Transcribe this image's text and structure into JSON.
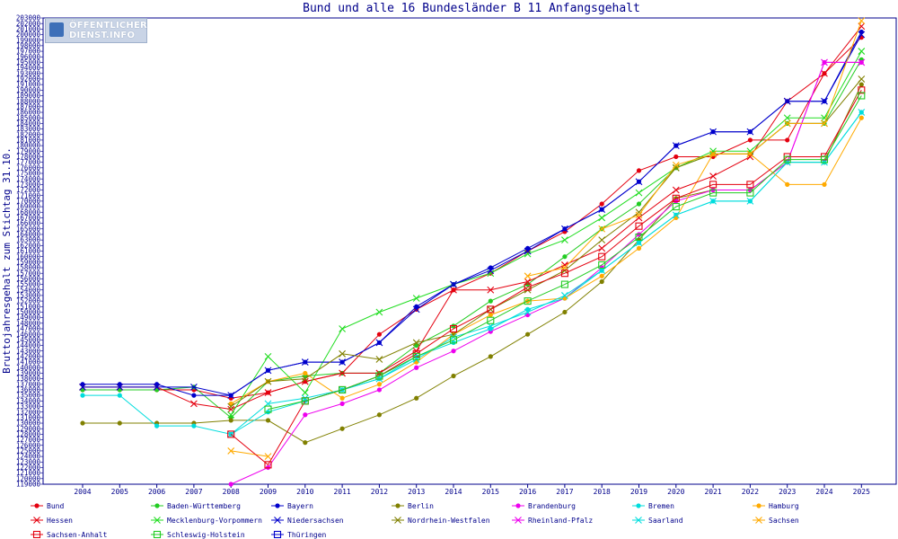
{
  "chart_data": {
    "type": "line",
    "title": "Bund und alle 16 Bundesländer B 11 Anfangsgehalt",
    "xlabel": "",
    "ylabel": "Bruttojahresgehalt zum Stichtag 31.10.",
    "categories": [
      "2004",
      "2005",
      "2006",
      "2007",
      "2008",
      "2009",
      "2010",
      "2011",
      "2012",
      "2013",
      "2014",
      "2015",
      "2016",
      "2017",
      "2018",
      "2019",
      "2020",
      "2021",
      "2022",
      "2023",
      "2024",
      "2025"
    ],
    "ylim": [
      119000,
      203000
    ],
    "ytick_step": 1000,
    "series": [
      {
        "name": "Bund",
        "color": "#e4000f",
        "marker": "dot",
        "values": [
          136000,
          136000,
          136000,
          136000,
          134500,
          135500,
          137500,
          139000,
          146000,
          150500,
          154000,
          157000,
          161000,
          164500,
          169500,
          175500,
          178000,
          178000,
          181000,
          181000,
          193000,
          199500
        ]
      },
      {
        "name": "Baden-Württemberg",
        "color": "#22cc22",
        "marker": "dot",
        "values": [
          136000,
          136000,
          136000,
          136500,
          131000,
          137500,
          138500,
          139000,
          139000,
          144000,
          147500,
          152000,
          155000,
          160000,
          165000,
          169500,
          176000,
          178500,
          178500,
          184000,
          184000,
          195500
        ]
      },
      {
        "name": "Bayern",
        "color": "#0000cc",
        "marker": "dot",
        "values": [
          137000,
          137000,
          137000,
          135000,
          135000,
          139500,
          141000,
          141000,
          144500,
          151000,
          155000,
          158000,
          161500,
          165000,
          168500,
          173500,
          180000,
          182500,
          182500,
          188000,
          188000,
          200500
        ]
      },
      {
        "name": "Berlin",
        "color": "#808000",
        "marker": "dot",
        "values": [
          130000,
          130000,
          130000,
          130000,
          130500,
          130500,
          126500,
          129000,
          131500,
          134500,
          138500,
          142000,
          146000,
          150000,
          155500,
          163000,
          170500,
          172000,
          172000,
          177000,
          177000,
          191000
        ]
      },
      {
        "name": "Brandenburg",
        "color": "#ee00ee",
        "marker": "dot",
        "values": [
          null,
          null,
          null,
          null,
          119000,
          122000,
          131500,
          133500,
          136000,
          140000,
          143000,
          146500,
          149500,
          152500,
          158000,
          164000,
          170000,
          172000,
          172000,
          177000,
          195000,
          195000
        ]
      },
      {
        "name": "Bremen",
        "color": "#00dddd",
        "marker": "dot",
        "values": [
          135000,
          135000,
          129500,
          129500,
          128000,
          132000,
          134000,
          136000,
          138000,
          142000,
          144500,
          147000,
          150500,
          152500,
          157500,
          162500,
          167500,
          170000,
          170000,
          177000,
          177000,
          186000
        ]
      },
      {
        "name": "Hamburg",
        "color": "#ffaa00",
        "marker": "dot",
        "values": [
          null,
          null,
          null,
          null,
          133500,
          137500,
          139000,
          134500,
          137000,
          141000,
          146000,
          149500,
          152000,
          152500,
          156500,
          161500,
          167000,
          178500,
          178500,
          173000,
          173000,
          185000
        ]
      },
      {
        "name": "Hessen",
        "color": "#e4000f",
        "marker": "x",
        "values": [
          136500,
          136500,
          136500,
          133500,
          132500,
          135500,
          137500,
          139000,
          139000,
          143000,
          154000,
          154000,
          155500,
          158500,
          161500,
          167000,
          172000,
          174500,
          178000,
          188000,
          193000,
          201500
        ]
      },
      {
        "name": "Mecklenburg-Vorpommern",
        "color": "#22dd22",
        "marker": "x",
        "values": [
          null,
          null,
          null,
          null,
          131500,
          142000,
          135500,
          147000,
          150000,
          152500,
          155000,
          157000,
          160500,
          163000,
          167000,
          171500,
          176000,
          179000,
          179000,
          185000,
          185000,
          197000
        ]
      },
      {
        "name": "Niedersachsen",
        "color": "#0000cc",
        "marker": "x",
        "values": [
          136500,
          136500,
          136500,
          136500,
          135000,
          139500,
          141000,
          141000,
          144500,
          150500,
          155000,
          157500,
          161000,
          165000,
          168500,
          173500,
          180000,
          182500,
          182500,
          188000,
          188000,
          200000
        ]
      },
      {
        "name": "Nordrhein-Westfalen",
        "color": "#808000",
        "marker": "x",
        "values": [
          null,
          null,
          null,
          null,
          133000,
          137500,
          138000,
          142500,
          141500,
          144500,
          146000,
          150500,
          154000,
          157500,
          163000,
          168000,
          176000,
          178500,
          178500,
          184000,
          184000,
          192000
        ]
      },
      {
        "name": "Rheinland-Pfalz",
        "color": "#ee00ee",
        "marker": "x",
        "values": [
          null,
          null,
          null,
          null,
          null,
          null,
          null,
          null,
          null,
          null,
          null,
          null,
          null,
          null,
          null,
          null,
          null,
          null,
          null,
          177000,
          195000,
          195000
        ]
      },
      {
        "name": "Saarland",
        "color": "#00dddd",
        "marker": "x",
        "values": [
          null,
          null,
          null,
          null,
          128000,
          133500,
          134500,
          136000,
          138000,
          141500,
          145500,
          147500,
          150000,
          153000,
          157500,
          162500,
          167500,
          170000,
          170000,
          177000,
          177000,
          186000
        ]
      },
      {
        "name": "Sachsen",
        "color": "#ffaa00",
        "marker": "x",
        "values": [
          null,
          null,
          null,
          null,
          125000,
          124000,
          null,
          null,
          null,
          null,
          null,
          null,
          156500,
          158000,
          165000,
          167500,
          176500,
          178500,
          178500,
          184000,
          184000,
          202500
        ]
      },
      {
        "name": "Sachsen-Anhalt",
        "color": "#e4000f",
        "marker": "square",
        "values": [
          null,
          null,
          null,
          null,
          128000,
          122500,
          134000,
          136000,
          138500,
          142500,
          147000,
          150500,
          154500,
          157000,
          160000,
          165500,
          170500,
          173000,
          173000,
          178000,
          178000,
          190000
        ]
      },
      {
        "name": "Schleswig-Holstein",
        "color": "#22cc22",
        "marker": "square",
        "values": [
          null,
          null,
          null,
          null,
          null,
          132500,
          134000,
          136000,
          138500,
          142000,
          145000,
          148500,
          152000,
          155000,
          158500,
          163500,
          169000,
          171500,
          171500,
          177500,
          177500,
          189000
        ]
      },
      {
        "name": "Thüringen",
        "color": "#0000cc",
        "marker": "square",
        "values": [
          null,
          null,
          null,
          null,
          null,
          null,
          null,
          null,
          null,
          null,
          null,
          null,
          null,
          null,
          null,
          null,
          null,
          null,
          null,
          null,
          null,
          null
        ]
      }
    ],
    "legend_position": "bottom",
    "grid": false
  },
  "logo": {
    "line1": "ÖFFENTLICHER",
    "line2": "DIENST.INFO"
  }
}
